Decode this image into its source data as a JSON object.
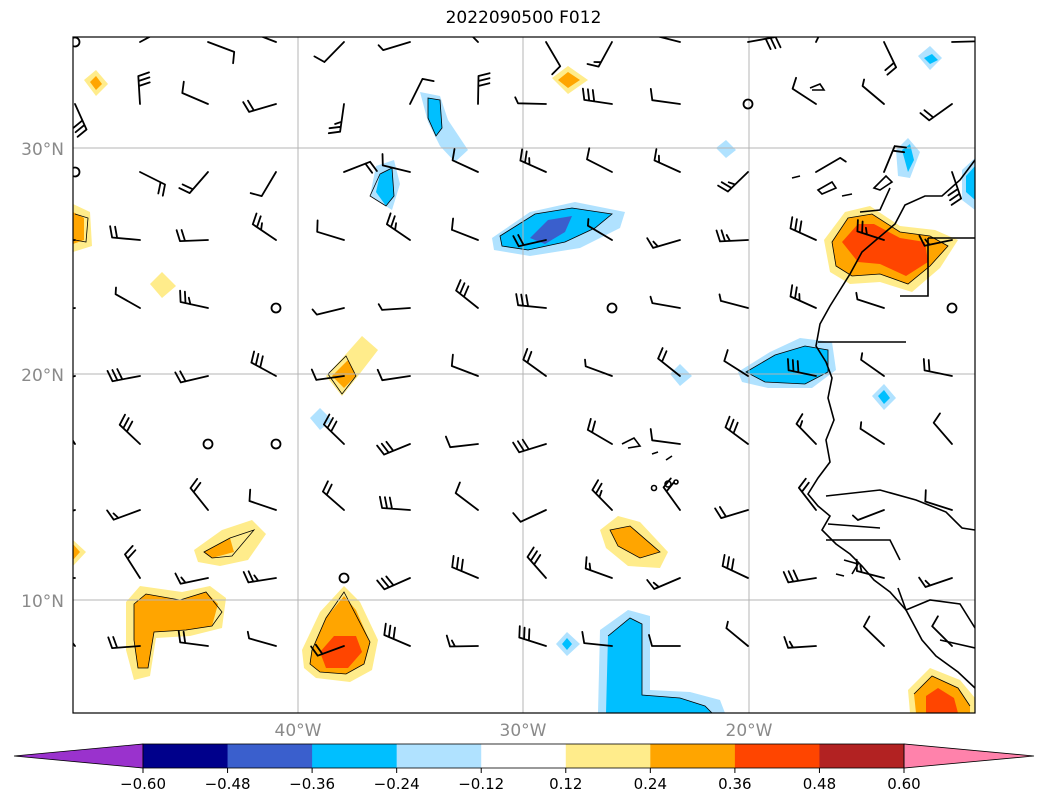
{
  "title": "2022090500 F012",
  "lat_labels": [
    "30°N",
    "20°N",
    "10°N"
  ],
  "lon_labels": [
    "40°W",
    "30°W",
    "20°W"
  ],
  "colorbar": {
    "ticks": [
      "−0.60",
      "−0.48",
      "−0.36",
      "−0.24",
      "−0.12",
      "0.12",
      "0.24",
      "0.36",
      "0.48",
      "0.60"
    ],
    "colors": [
      "#9a32cd",
      "#00008b",
      "#3a5fcd",
      "#00bfff",
      "#b0e2ff",
      "#ffffff",
      "#ffec8b",
      "#ffa500",
      "#ff4500",
      "#b22222",
      "#ff82ab"
    ]
  },
  "contour_colors": {
    "neg_light": "#b0e2ff",
    "neg_mid": "#00bfff",
    "neg_dark": "#3a5fcd",
    "pos_light": "#ffec8b",
    "pos_mid": "#ffa500",
    "pos_dark": "#ff4500"
  }
}
